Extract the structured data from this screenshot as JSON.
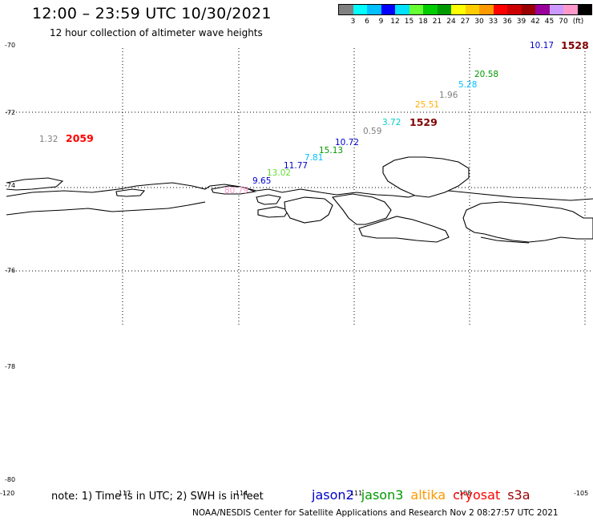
{
  "header": {
    "title": "12:00 – 23:59 UTC 10/30/2021",
    "subtitle": "12 hour collection of altimeter wave heights"
  },
  "legend": {
    "unit": "(ft)",
    "colors": [
      "#808080",
      "#00ffff",
      "#00bfff",
      "#0000ff",
      "#00e0ff",
      "#66ff33",
      "#00cc00",
      "#009900",
      "#ffff00",
      "#ffcc00",
      "#ff9900",
      "#ff0000",
      "#cc0000",
      "#990000",
      "#990099",
      "#cc99ff",
      "#ff99cc",
      "#000000"
    ],
    "labels": [
      "3",
      "6",
      "9",
      "12",
      "15",
      "18",
      "21",
      "24",
      "27",
      "30",
      "33",
      "36",
      "39",
      "42",
      "45",
      "70"
    ]
  },
  "axes": {
    "lat_labels": [
      "-70",
      "-72",
      "-74",
      "-76",
      "-78",
      "-80"
    ],
    "lon_labels": [
      "-120",
      "-117",
      "-114",
      "-111",
      "-108",
      "-105"
    ]
  },
  "wave_heights": [
    {
      "text": "10.17",
      "color": "#0000cc"
    },
    {
      "text": "20.58",
      "color": "#009900"
    },
    {
      "text": "5.28",
      "color": "#00bfff"
    },
    {
      "text": "1.96",
      "color": "#808080"
    },
    {
      "text": "25.51",
      "color": "#ffb000"
    },
    {
      "text": "3.72",
      "color": "#00cccc"
    },
    {
      "text": "0.59",
      "color": "#808080"
    },
    {
      "text": "10.72",
      "color": "#0000cc"
    },
    {
      "text": "15.13",
      "color": "#009900"
    },
    {
      "text": "7.81",
      "color": "#00bfff"
    },
    {
      "text": "11.77",
      "color": "#0000cc"
    },
    {
      "text": "13.02",
      "color": "#66dd33"
    },
    {
      "text": "9.65",
      "color": "#0000cc"
    },
    {
      "text": "80.79",
      "color": "#ff99cc"
    },
    {
      "text": "1.32",
      "color": "#808080"
    }
  ],
  "pass_times": [
    {
      "text": "1528",
      "color": "#800000"
    },
    {
      "text": "1529",
      "color": "#800000"
    },
    {
      "text": "2059",
      "color": "#ff0000"
    }
  ],
  "footer": {
    "note": "note: 1) Time is in UTC; 2) SWH is in feet",
    "satellites": [
      {
        "name": "jason2",
        "color": "#0000cc"
      },
      {
        "name": "jason3",
        "color": "#009900"
      },
      {
        "name": "altika",
        "color": "#ff9900"
      },
      {
        "name": "cryosat",
        "color": "#ff0000"
      },
      {
        "name": "s3a",
        "color": "#990000"
      }
    ],
    "credit": "NOAA/NESDIS Center for Satellite Applications and Research    Nov  2 08:27:57 UTC 2021"
  }
}
